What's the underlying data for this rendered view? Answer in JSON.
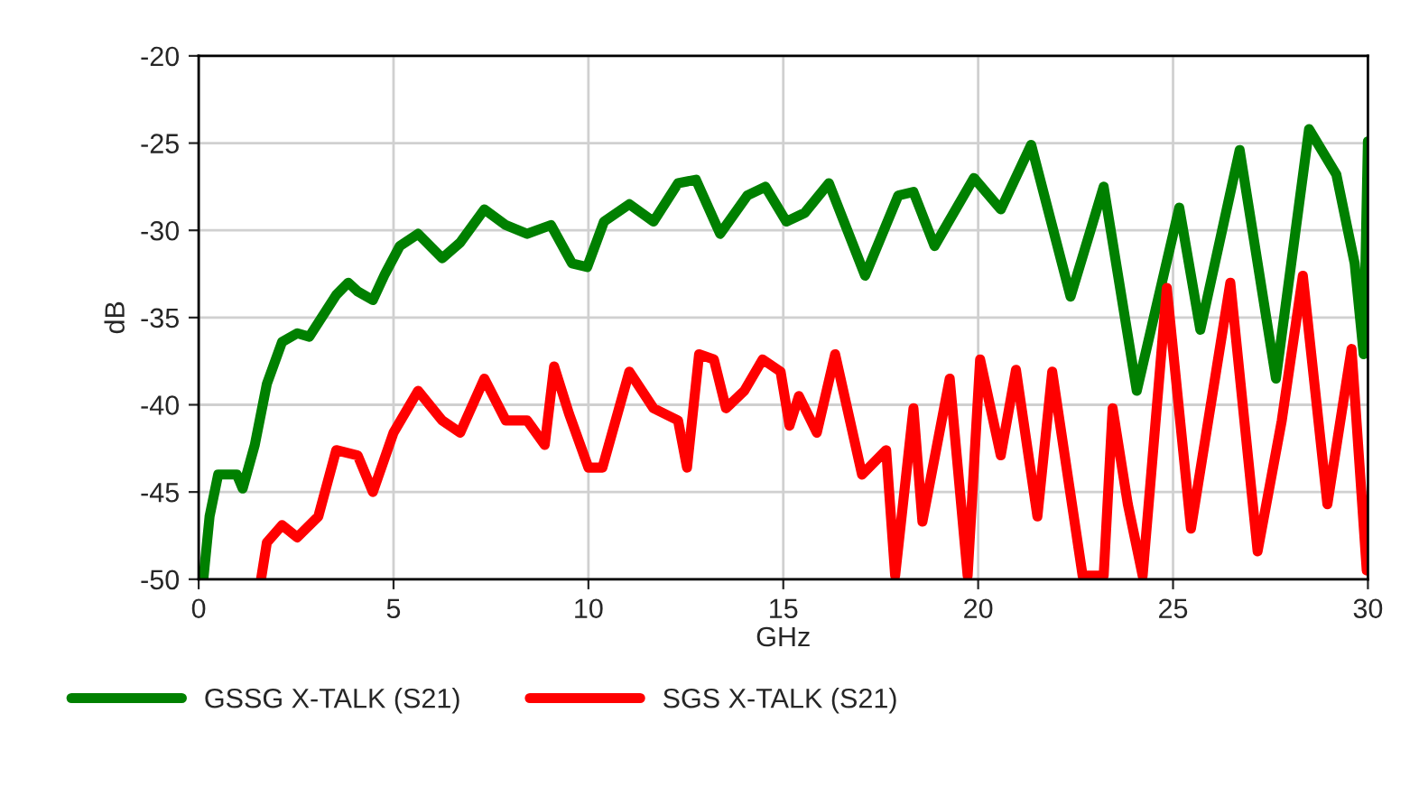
{
  "chart_data": {
    "type": "line",
    "xlabel": "GHz",
    "ylabel": "dB",
    "xlim": [
      0,
      30
    ],
    "xticks": [
      0,
      5,
      10,
      15,
      20,
      25,
      30
    ],
    "ylim": [
      -50,
      -20
    ],
    "yticks": [
      -50,
      -45,
      -40,
      -35,
      -30,
      -25,
      -20
    ],
    "grid": true,
    "legend": "bottom",
    "line_style": "solid",
    "marker": "none",
    "series": [
      {
        "name": "GSSG X-TALK (S21)",
        "color": "#008000",
        "x": [
          0.12,
          0.28,
          0.5,
          0.98,
          1.13,
          1.44,
          1.75,
          2.14,
          2.53,
          2.84,
          3.53,
          3.84,
          4.08,
          4.47,
          4.78,
          5.16,
          5.63,
          6.25,
          6.71,
          7.33,
          7.88,
          8.43,
          9.04,
          9.58,
          9.97,
          10.4,
          11.05,
          11.67,
          12.3,
          12.76,
          13.38,
          14.08,
          14.54,
          15.08,
          15.55,
          16.17,
          17.1,
          17.95,
          18.34,
          18.88,
          19.89,
          20.58,
          21.36,
          22.37,
          23.22,
          24.07,
          25.16,
          25.7,
          26.71,
          27.64,
          28.49,
          29.19,
          29.66,
          29.89,
          30.0
        ],
        "values": [
          -50,
          -46.4,
          -44,
          -44,
          -44.8,
          -42.3,
          -38.8,
          -36.4,
          -35.9,
          -36.1,
          -33.7,
          -33.0,
          -33.5,
          -34.0,
          -32.5,
          -30.9,
          -30.2,
          -31.6,
          -30.7,
          -28.8,
          -29.7,
          -30.2,
          -29.7,
          -31.9,
          -32.1,
          -29.5,
          -28.5,
          -29.5,
          -27.3,
          -27.1,
          -30.2,
          -28.0,
          -27.5,
          -29.5,
          -29.0,
          -27.3,
          -32.6,
          -28.0,
          -27.8,
          -30.9,
          -27.0,
          -28.8,
          -25.1,
          -33.8,
          -27.5,
          -39.2,
          -28.7,
          -35.7,
          -25.4,
          -38.5,
          -24.2,
          -26.8,
          -31.9,
          -37.1,
          -24.9
        ]
      },
      {
        "name": "SGS X-TALK (S21)",
        "color": "#ff0000",
        "x": [
          1.6,
          1.75,
          2.14,
          2.53,
          3.07,
          3.53,
          4.08,
          4.47,
          5.0,
          5.63,
          6.25,
          6.71,
          7.33,
          7.88,
          8.43,
          8.88,
          9.12,
          9.5,
          10.0,
          10.36,
          11.05,
          11.67,
          12.3,
          12.53,
          12.84,
          13.22,
          13.53,
          14.0,
          14.47,
          14.93,
          15.16,
          15.4,
          15.86,
          16.33,
          17.02,
          17.64,
          17.87,
          18.34,
          18.57,
          19.27,
          19.73,
          20.05,
          20.58,
          20.97,
          21.52,
          21.9,
          22.68,
          23.22,
          23.45,
          23.84,
          24.22,
          24.84,
          25.46,
          26.47,
          27.17,
          27.79,
          28.33,
          28.96,
          29.58,
          29.97
        ],
        "values": [
          -50,
          -47.9,
          -46.9,
          -47.6,
          -46.4,
          -42.6,
          -42.9,
          -45.0,
          -41.6,
          -39.2,
          -40.9,
          -41.6,
          -38.5,
          -40.9,
          -40.9,
          -42.3,
          -37.8,
          -40.5,
          -43.6,
          -43.6,
          -38.1,
          -40.2,
          -40.9,
          -43.6,
          -37.1,
          -37.4,
          -40.2,
          -39.2,
          -37.4,
          -38.1,
          -41.2,
          -39.5,
          -41.6,
          -37.1,
          -44.0,
          -42.6,
          -49.8,
          -40.2,
          -46.7,
          -38.5,
          -49.8,
          -37.4,
          -42.9,
          -38.0,
          -46.4,
          -38.1,
          -49.8,
          -49.8,
          -40.2,
          -45.7,
          -49.8,
          -33.3,
          -47.1,
          -33.0,
          -48.4,
          -40.9,
          -32.6,
          -45.7,
          -36.8,
          -49.5
        ]
      }
    ]
  }
}
